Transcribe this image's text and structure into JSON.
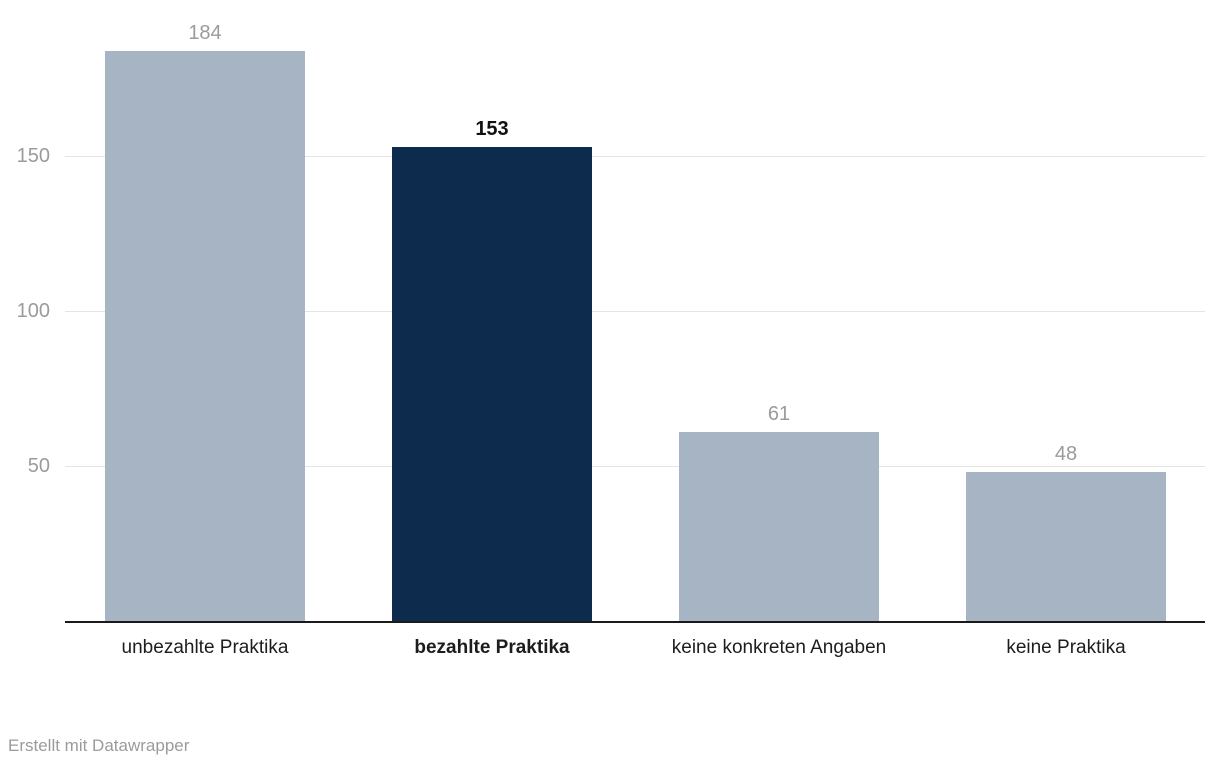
{
  "chart_data": {
    "type": "bar",
    "categories": [
      "unbezahlte Praktika",
      "bezahlte Praktika",
      "keine konkreten Angaben",
      "keine Praktika"
    ],
    "values": [
      184,
      153,
      61,
      48
    ],
    "highlighted_index": 1,
    "yticks": [
      50,
      100,
      150
    ],
    "ylim": [
      0,
      200
    ],
    "grid": true,
    "colors": {
      "bar": "#a7b4c4",
      "highlight_bar": "#0c2b4d",
      "value_label": "#9b9b9b",
      "highlight_value_label": "#111111",
      "gridline": "#e4e4e4",
      "baseline": "#1a1a1a"
    },
    "footer": "Erstellt mit Datawrapper"
  }
}
